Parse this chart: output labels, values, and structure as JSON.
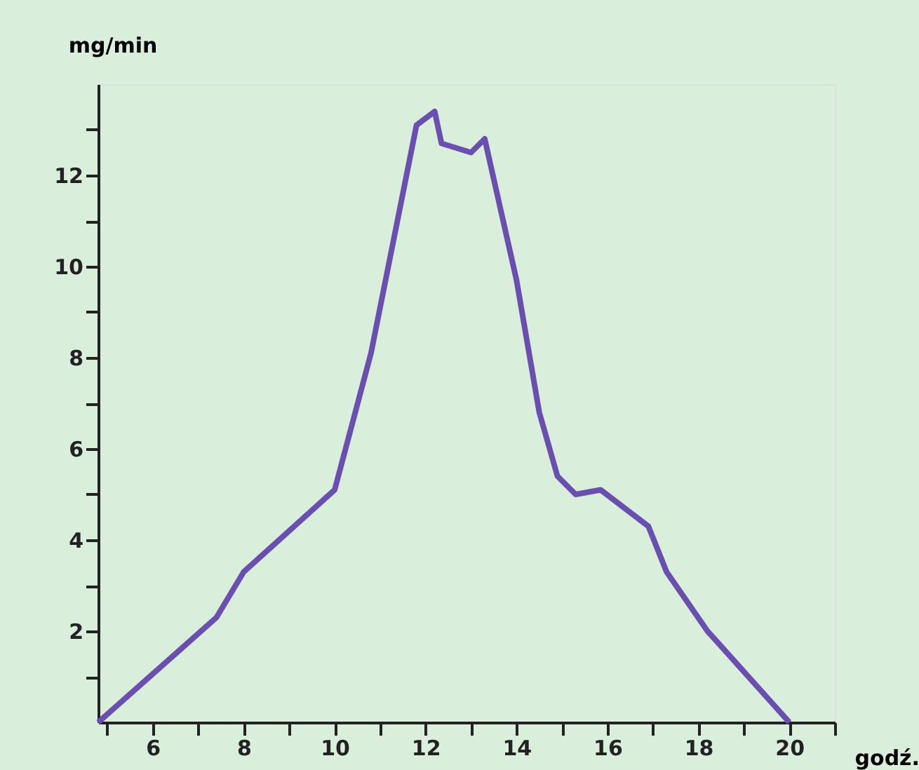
{
  "chart_data": {
    "type": "line",
    "xlabel": "godź.",
    "ylabel": "mg/min",
    "x": [
      4.8,
      7.4,
      8.0,
      10.0,
      10.8,
      11.8,
      12.2,
      12.35,
      13.0,
      13.3,
      14.0,
      14.5,
      14.9,
      15.3,
      15.85,
      16.9,
      17.3,
      18.2,
      20.0
    ],
    "series": [
      {
        "color": "#6a4fb0",
        "values": [
          0,
          2.3,
          3.3,
          5.1,
          8.1,
          13.1,
          13.4,
          12.7,
          12.5,
          12.8,
          9.7,
          6.8,
          5.4,
          5.0,
          5.1,
          4.3,
          3.3,
          2.0,
          0
        ]
      }
    ],
    "xlim": [
      4.8,
      21
    ],
    "ylim": [
      0,
      14
    ],
    "xticks": [
      {
        "value": 5,
        "label": null
      },
      6,
      {
        "value": 7,
        "label": null
      },
      8,
      {
        "value": 9,
        "label": null
      },
      10,
      {
        "value": 11,
        "label": null
      },
      12,
      {
        "value": 13,
        "label": null
      },
      14,
      {
        "value": 15,
        "label": null
      },
      16,
      {
        "value": 17,
        "label": null
      },
      18,
      {
        "value": 19,
        "label": null
      },
      20,
      {
        "value": 21,
        "label": null
      }
    ],
    "yticks": [
      {
        "value": 1,
        "label": null
      },
      2,
      {
        "value": 3,
        "label": null
      },
      4,
      {
        "value": 5,
        "label": null
      },
      6,
      {
        "value": 7,
        "label": null
      },
      8,
      {
        "value": 9,
        "label": null
      },
      10,
      {
        "value": 11,
        "label": null
      },
      12,
      {
        "value": 13,
        "label": null
      }
    ],
    "grid": false,
    "legend": false,
    "marker": "none",
    "line_style": "solid"
  }
}
